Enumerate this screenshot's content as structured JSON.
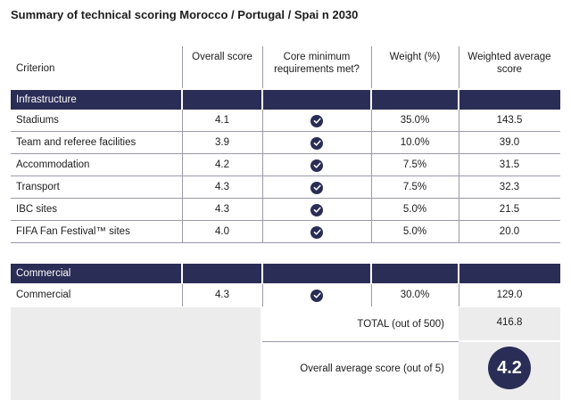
{
  "title": "Summary of technical scoring Morocco / Portugal / Spai n 2030",
  "columns": {
    "criterion": "Criterion",
    "overall_score": "Overall score",
    "core_requirements": "Core minimum requirements met?",
    "weight": "Weight (%)",
    "weighted_avg": "Weighted average score"
  },
  "sections": [
    {
      "name": "Infrastructure",
      "rows": [
        {
          "criterion": "Stadiums",
          "score": "4.1",
          "met": true,
          "weight": "35.0%",
          "wavg": "143.5"
        },
        {
          "criterion": "Team and referee facilities",
          "score": "3.9",
          "met": true,
          "weight": "10.0%",
          "wavg": "39.0"
        },
        {
          "criterion": "Accommodation",
          "score": "4.2",
          "met": true,
          "weight": "7.5%",
          "wavg": "31.5"
        },
        {
          "criterion": "Transport",
          "score": "4.3",
          "met": true,
          "weight": "7.5%",
          "wavg": "32.3"
        },
        {
          "criterion": "IBC sites",
          "score": "4.3",
          "met": true,
          "weight": "5.0%",
          "wavg": "21.5"
        },
        {
          "criterion": "FIFA Fan Festival™ sites",
          "score": "4.0",
          "met": true,
          "weight": "5.0%",
          "wavg": "20.0"
        }
      ]
    },
    {
      "name": "Commercial",
      "rows": [
        {
          "criterion": "Commercial",
          "score": "4.3",
          "met": true,
          "weight": "30.0%",
          "wavg": "129.0"
        }
      ]
    }
  ],
  "total": {
    "label": "TOTAL (out of 500)",
    "value": "416.8"
  },
  "overall": {
    "label": "Overall average score (out of 5)",
    "value": "4.2"
  },
  "colors": {
    "navy": "#2a2d55",
    "grey": "#ececec"
  },
  "icons": {
    "met": "check-circle-icon"
  }
}
